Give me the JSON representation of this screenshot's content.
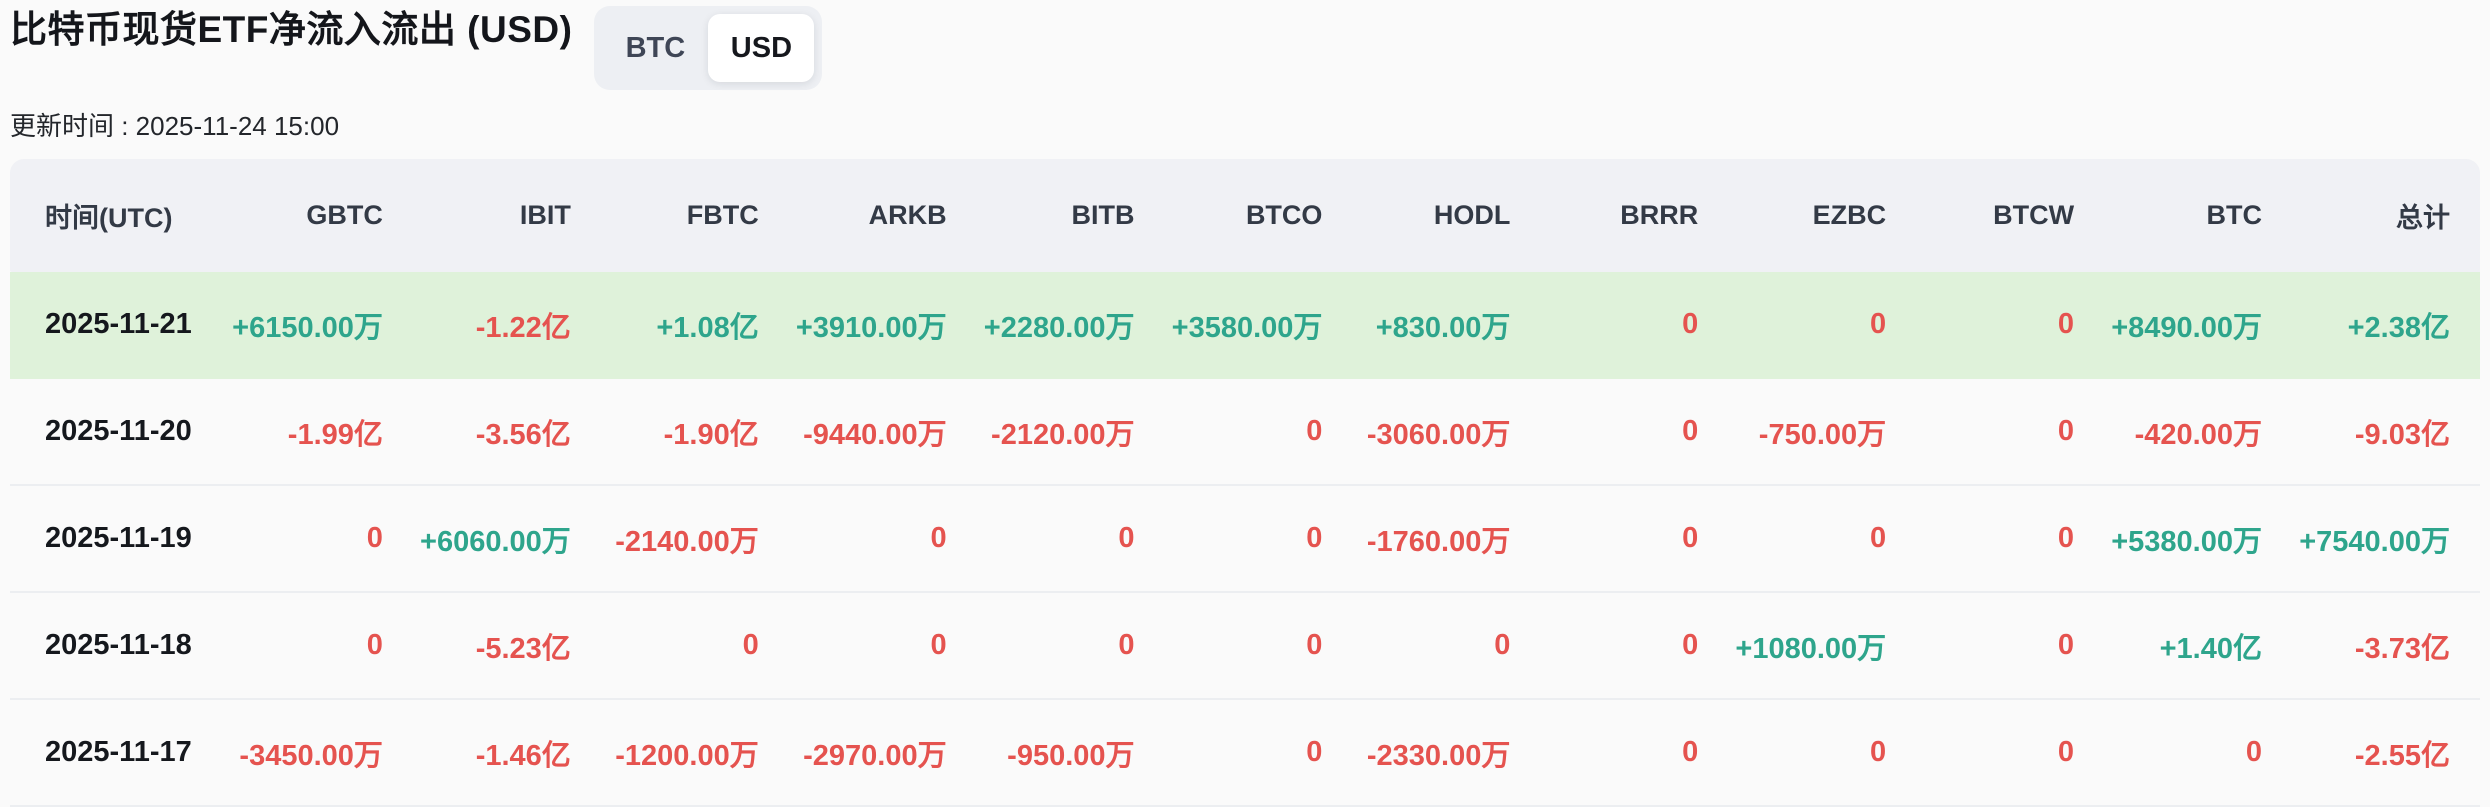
{
  "page": {
    "title": "比特币现货ETF净流入流出 (USD)",
    "updated_label": "更新时间 : 2025-11-24 15:00"
  },
  "toggle": {
    "options": [
      "BTC",
      "USD"
    ],
    "selected": "USD"
  },
  "colors": {
    "positive": "#2EA58C",
    "negative": "#E5534F",
    "highlight_row_bg": "#DFF2DA",
    "header_bg": "#F0F1F5",
    "page_bg": "#FAFAFA"
  },
  "table": {
    "columns": [
      "时间(UTC)",
      "GBTC",
      "IBIT",
      "FBTC",
      "ARKB",
      "BITB",
      "BTCO",
      "HODL",
      "BRRR",
      "EZBC",
      "BTCW",
      "BTC",
      "总计"
    ],
    "rows": [
      {
        "date": "2025-11-21",
        "highlighted": true,
        "values": [
          "+6150.00万",
          "-1.22亿",
          "+1.08亿",
          "+3910.00万",
          "+2280.00万",
          "+3580.00万",
          "+830.00万",
          "0",
          "0",
          "0",
          "+8490.00万",
          "+2.38亿"
        ]
      },
      {
        "date": "2025-11-20",
        "highlighted": false,
        "values": [
          "-1.99亿",
          "-3.56亿",
          "-1.90亿",
          "-9440.00万",
          "-2120.00万",
          "0",
          "-3060.00万",
          "0",
          "-750.00万",
          "0",
          "-420.00万",
          "-9.03亿"
        ]
      },
      {
        "date": "2025-11-19",
        "highlighted": false,
        "values": [
          "0",
          "+6060.00万",
          "-2140.00万",
          "0",
          "0",
          "0",
          "-1760.00万",
          "0",
          "0",
          "0",
          "+5380.00万",
          "+7540.00万"
        ]
      },
      {
        "date": "2025-11-18",
        "highlighted": false,
        "values": [
          "0",
          "-5.23亿",
          "0",
          "0",
          "0",
          "0",
          "0",
          "0",
          "+1080.00万",
          "0",
          "+1.40亿",
          "-3.73亿"
        ]
      },
      {
        "date": "2025-11-17",
        "highlighted": false,
        "values": [
          "-3450.00万",
          "-1.46亿",
          "-1200.00万",
          "-2970.00万",
          "-950.00万",
          "0",
          "-2330.00万",
          "0",
          "0",
          "0",
          "0",
          "-2.55亿"
        ]
      }
    ]
  }
}
